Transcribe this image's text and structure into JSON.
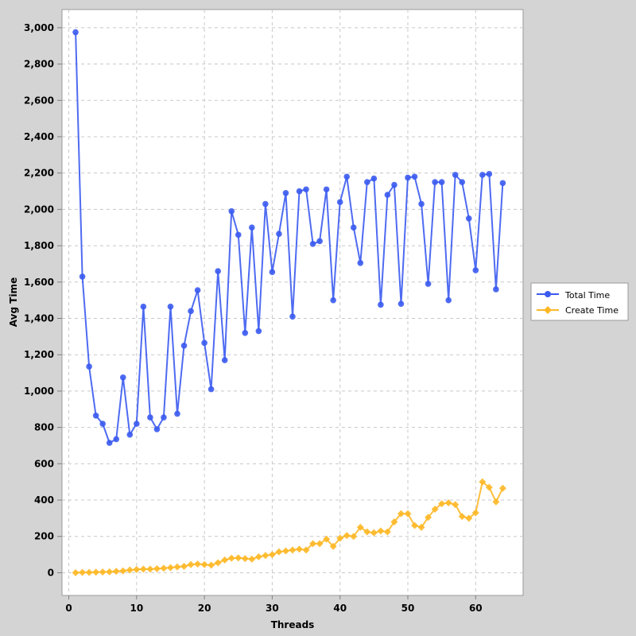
{
  "chart_data": {
    "type": "line",
    "xlabel": "Threads",
    "ylabel": "Avg Time",
    "xlim": [
      -1,
      67
    ],
    "ylim": [
      -125,
      3100
    ],
    "x_ticks": [
      0,
      10,
      20,
      30,
      40,
      50,
      60
    ],
    "y_ticks": [
      0,
      200,
      400,
      600,
      800,
      1000,
      1200,
      1400,
      1600,
      1800,
      2000,
      2200,
      2400,
      2600,
      2800,
      3000
    ],
    "x_tick_labels": [
      "0",
      "10",
      "20",
      "30",
      "40",
      "50",
      "60"
    ],
    "y_tick_labels": [
      "0",
      "200",
      "400",
      "600",
      "800",
      "1,000",
      "1,200",
      "1,400",
      "1,600",
      "1,800",
      "2,000",
      "2,200",
      "2,400",
      "2,600",
      "2,800",
      "3,000"
    ],
    "grid": true,
    "legend_position": "right",
    "x": [
      1,
      2,
      3,
      4,
      5,
      6,
      7,
      8,
      9,
      10,
      11,
      12,
      13,
      14,
      15,
      16,
      17,
      18,
      19,
      20,
      21,
      22,
      23,
      24,
      25,
      26,
      27,
      28,
      29,
      30,
      31,
      32,
      33,
      34,
      35,
      36,
      37,
      38,
      39,
      40,
      41,
      42,
      43,
      44,
      45,
      46,
      47,
      48,
      49,
      50,
      51,
      52,
      53,
      54,
      55,
      56,
      57,
      58,
      59,
      60,
      61,
      62,
      63,
      64
    ],
    "series": [
      {
        "name": "Total Time",
        "color": "#3b5bf0",
        "marker": "circle",
        "values": [
          2975,
          1630,
          1135,
          865,
          820,
          715,
          735,
          1075,
          760,
          820,
          1465,
          855,
          790,
          855,
          1465,
          875,
          1250,
          1440,
          1555,
          1265,
          1010,
          1660,
          1170,
          1990,
          1860,
          1320,
          1900,
          1330,
          2030,
          1655,
          1865,
          2090,
          1410,
          2100,
          2110,
          1810,
          1825,
          2110,
          1500,
          2040,
          2180,
          1900,
          1705,
          2150,
          2170,
          1475,
          2080,
          2135,
          1480,
          2175,
          2180,
          2030,
          1590,
          2150,
          2150,
          1500,
          2190,
          2150,
          1950,
          1665,
          2190,
          2195,
          1560,
          2145
        ]
      },
      {
        "name": "Create Time",
        "color": "#fdb827",
        "marker": "diamond",
        "values": [
          0,
          2,
          2,
          3,
          4,
          5,
          8,
          10,
          15,
          18,
          20,
          20,
          22,
          25,
          28,
          32,
          35,
          45,
          48,
          45,
          42,
          55,
          70,
          80,
          82,
          78,
          75,
          88,
          95,
          100,
          115,
          120,
          125,
          130,
          125,
          160,
          160,
          185,
          145,
          190,
          205,
          200,
          250,
          225,
          220,
          230,
          225,
          280,
          325,
          325,
          260,
          250,
          305,
          350,
          380,
          385,
          375,
          310,
          300,
          330,
          500,
          470,
          390,
          465
        ]
      }
    ]
  }
}
